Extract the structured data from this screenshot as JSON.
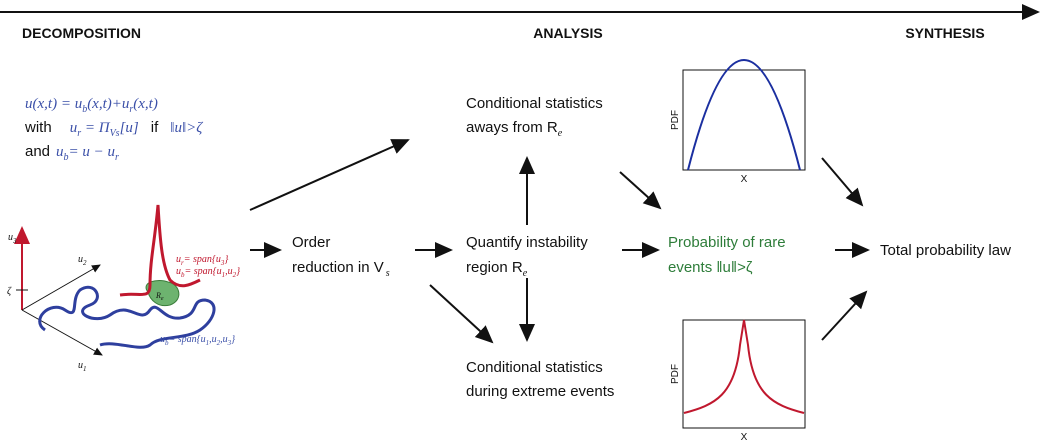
{
  "header": {
    "stages": [
      "DECOMPOSITION",
      "ANALYSIS",
      "SYNTHESIS"
    ]
  },
  "decomposition": {
    "equations": [
      [
        "u(x,t) = u",
        "b",
        "(x,t)+u",
        "r",
        "(x,t)"
      ],
      [
        "with",
        "u",
        "r",
        " = Π",
        "Vs",
        "[u]",
        "if",
        "‖u‖>ζ"
      ],
      [
        "and",
        "u",
        "b",
        "= u − u",
        "r"
      ]
    ]
  },
  "sketch": {
    "axes": [
      [
        "u",
        "3"
      ],
      [
        "u",
        "2"
      ],
      [
        "u",
        "1"
      ]
    ],
    "threshold": "ζ",
    "region": [
      "R",
      "e"
    ],
    "red_labels": [
      [
        "u",
        "r",
        "= span{u",
        "3",
        "}"
      ],
      [
        "u",
        "b",
        "= span{u",
        "1",
        ",u",
        "2",
        "}"
      ]
    ],
    "blue_label": [
      "u",
      "b",
      "= span{u",
      "1",
      ",u",
      "2",
      ",u",
      "3",
      "}"
    ]
  },
  "nodes": {
    "order_reduction": [
      "Order",
      "reduction in V",
      "s"
    ],
    "instability": [
      "Quantify instability",
      "region R",
      "e"
    ],
    "away": [
      "Conditional statistics",
      "aways from R",
      "e"
    ],
    "extreme": [
      "Conditional statistics",
      "during extreme events"
    ],
    "rare": [
      "Probability of rare",
      "events ‖u‖>ζ"
    ],
    "total": "Total probability law"
  },
  "plots": [
    {
      "y_label": "PDF",
      "x_label": "X"
    },
    {
      "y_label": "PDF",
      "x_label": "X"
    }
  ]
}
